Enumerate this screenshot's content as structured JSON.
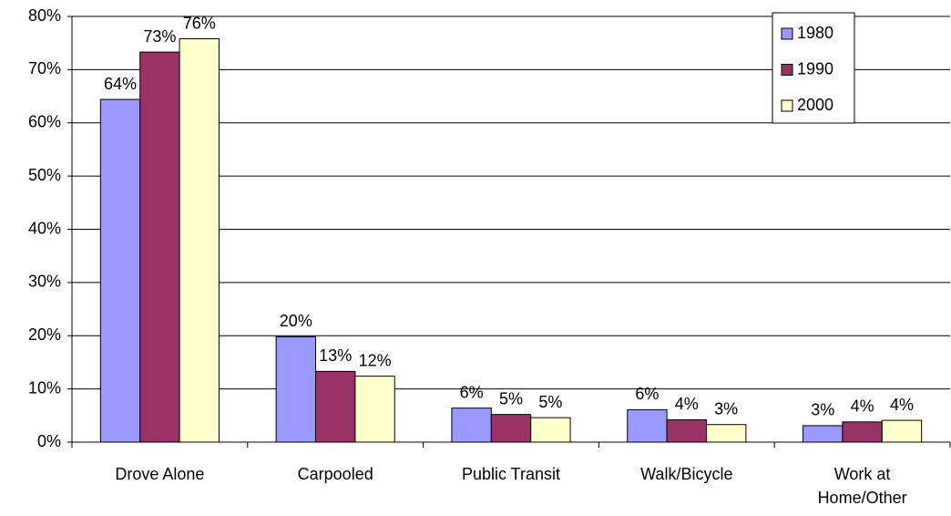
{
  "chart_data": {
    "type": "bar",
    "categories": [
      "Drove Alone",
      "Carpooled",
      "Public Transit",
      "Walk/Bicycle",
      "Work at Home/Other"
    ],
    "series": [
      {
        "name": "1980",
        "color": "#9999ff",
        "values": [
          64.4,
          19.8,
          6.4,
          6.1,
          3.1
        ],
        "value_labels": [
          "64%",
          "20%",
          "6%",
          "6%",
          "3%"
        ]
      },
      {
        "name": "1990",
        "color": "#993366",
        "values": [
          73.3,
          13.3,
          5.2,
          4.2,
          3.8
        ],
        "value_labels": [
          "73%",
          "13%",
          "5%",
          "4%",
          "4%"
        ]
      },
      {
        "name": "2000",
        "color": "#ffffcc",
        "values": [
          75.8,
          12.4,
          4.6,
          3.3,
          4.1
        ],
        "value_labels": [
          "76%",
          "12%",
          "5%",
          "3%",
          "4%"
        ]
      }
    ],
    "ylim": [
      0,
      80
    ],
    "yticks": [
      {
        "value": 0,
        "label": "0%"
      },
      {
        "value": 10,
        "label": "10%"
      },
      {
        "value": 20,
        "label": "20%"
      },
      {
        "value": 30,
        "label": "30%"
      },
      {
        "value": 40,
        "label": "40%"
      },
      {
        "value": 50,
        "label": "50%"
      },
      {
        "value": 60,
        "label": "60%"
      },
      {
        "value": 70,
        "label": "70%"
      },
      {
        "value": 80,
        "label": "80%"
      }
    ],
    "grid": true,
    "legend": "top-right"
  }
}
